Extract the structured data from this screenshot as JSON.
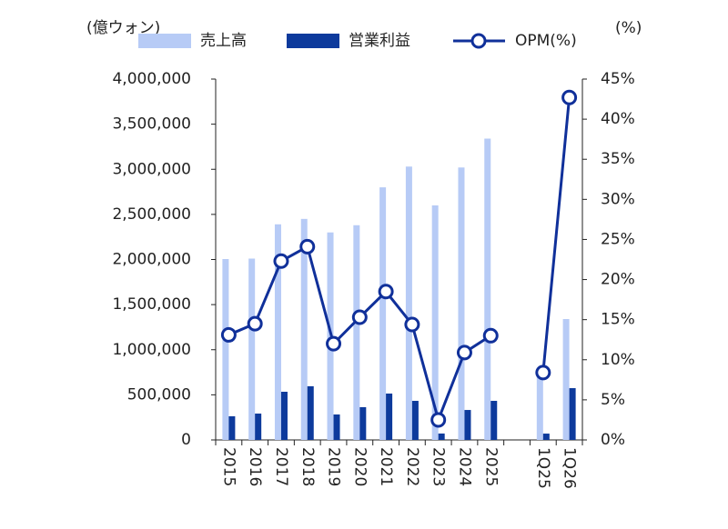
{
  "chart_data": {
    "type": "bar_line",
    "y_label": "(億ウォン)",
    "y2_label": "(%)",
    "categories": [
      "2015",
      "2016",
      "2017",
      "2018",
      "2019",
      "2020",
      "2021",
      "2022",
      "2023",
      "2024",
      "2025",
      null,
      "1Q25",
      "1Q26"
    ],
    "series": [
      {
        "name": "売上高",
        "color": "#b7cbf6",
        "type": "bar",
        "values": [
          2005000,
          2010000,
          2390000,
          2450000,
          2300000,
          2380000,
          2800000,
          3030000,
          2600000,
          3020000,
          3340000,
          null,
          790000,
          1340000
        ]
      },
      {
        "name": "営業利益",
        "color": "#0d3a9c",
        "type": "bar",
        "values": [
          262000,
          292000,
          534000,
          595000,
          282000,
          363000,
          514000,
          433000,
          71000,
          332000,
          433000,
          null,
          70000,
          574000
        ]
      },
      {
        "name": "OPM(%)",
        "color": "#10309a",
        "type": "line",
        "axis": "y2",
        "values": [
          13.1,
          14.5,
          22.3,
          24.1,
          12.0,
          15.3,
          18.5,
          14.4,
          2.5,
          10.9,
          13.0,
          null,
          8.4,
          42.7
        ]
      }
    ],
    "ylim": [
      0,
      4000000
    ],
    "yticks": [
      0,
      {
        "value": 500000,
        "label": "500,000"
      },
      {
        "value": 1000000,
        "label": "1,000,000"
      },
      {
        "value": 1500000,
        "label": "1,500,000"
      },
      {
        "value": 2000000,
        "label": "2,000,000"
      },
      {
        "value": 2500000,
        "label": "2,500,000"
      },
      {
        "value": 3000000,
        "label": "3,000,000"
      },
      {
        "value": 3500000,
        "label": "3,500,000"
      },
      {
        "value": 4000000,
        "label": "4,000,000"
      }
    ],
    "y2lim": [
      0,
      45
    ],
    "y2ticks": [
      {
        "value": 0,
        "label": "0%"
      },
      {
        "value": 5,
        "label": "5%"
      },
      {
        "value": 10,
        "label": "10%"
      },
      {
        "value": 15,
        "label": "15%"
      },
      {
        "value": 20,
        "label": "20%"
      },
      {
        "value": 25,
        "label": "25%"
      },
      {
        "value": 30,
        "label": "30%"
      },
      {
        "value": 35,
        "label": "35%"
      },
      {
        "value": 40,
        "label": "40%"
      },
      {
        "value": 45,
        "label": "45%"
      }
    ],
    "grid": false
  }
}
